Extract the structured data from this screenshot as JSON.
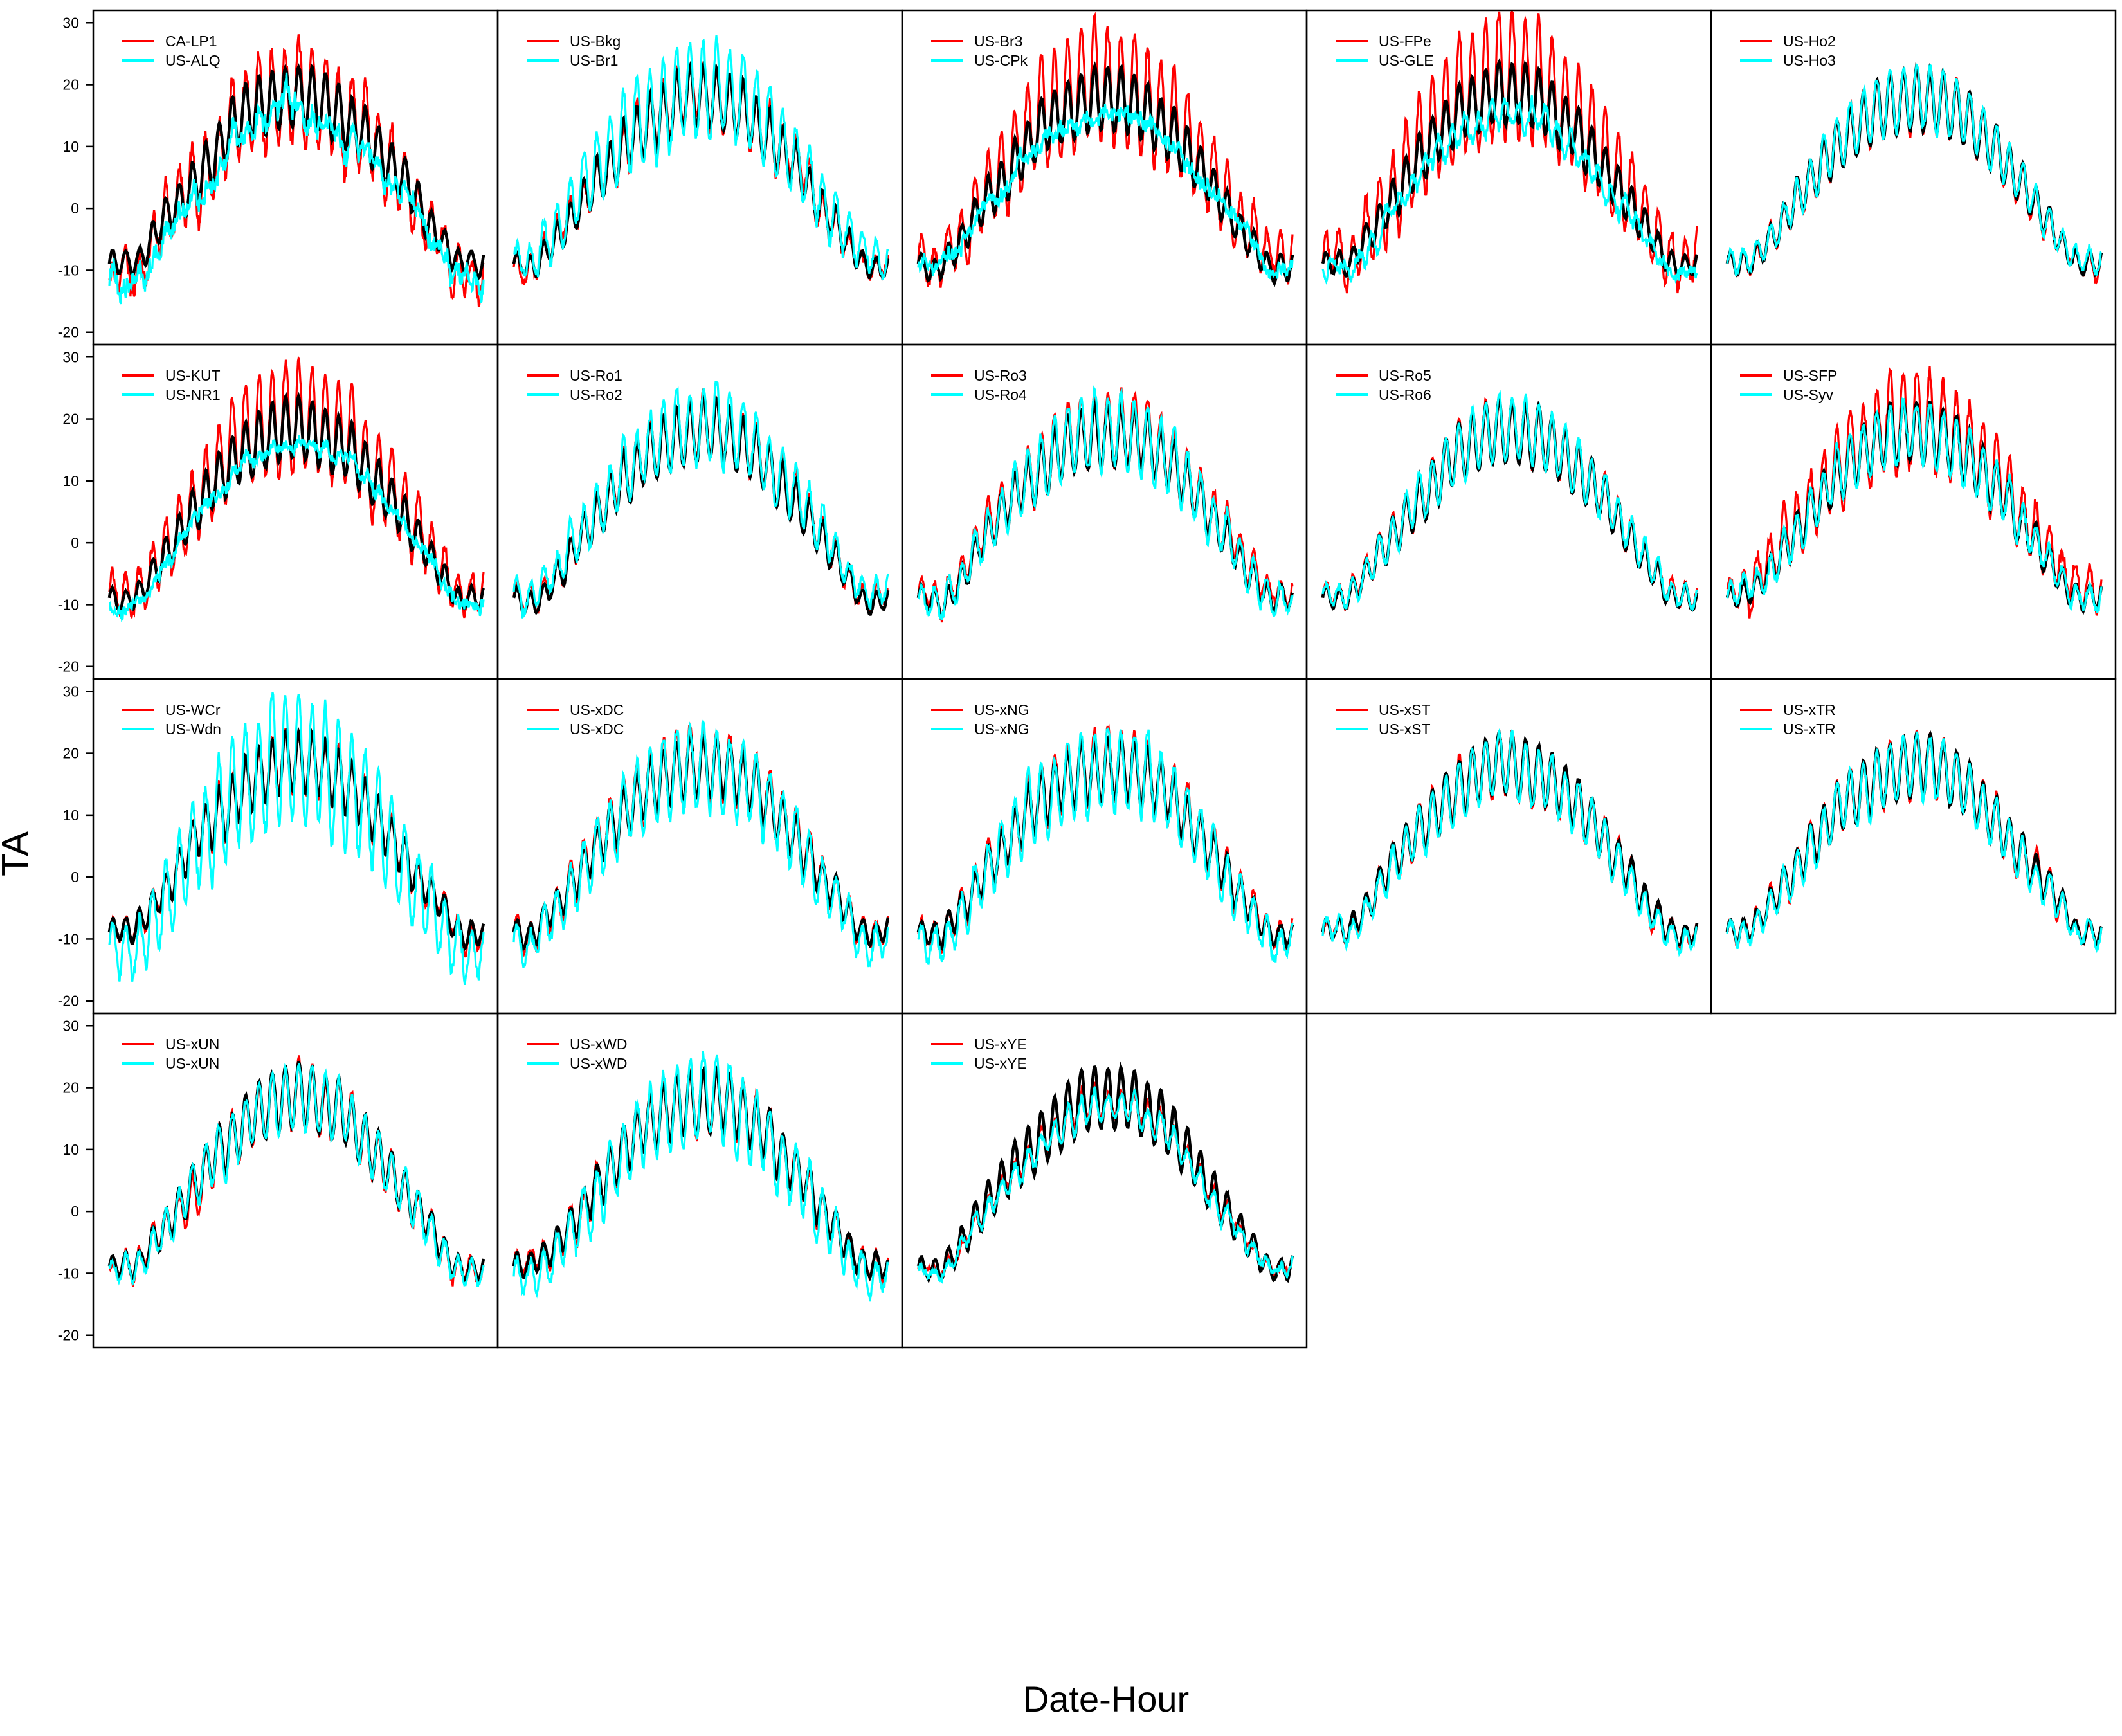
{
  "chart_data": {
    "type": "line",
    "xlabel": "Date-Hour",
    "ylabel": "TA",
    "ylim": [
      -22,
      32
    ],
    "y_ticks": [
      -20,
      -10,
      0,
      10,
      20,
      30
    ],
    "x_ticks": [],
    "grid": false,
    "legend_position": "top-left",
    "colors": {
      "reference": "#000000",
      "first": "#ff0000",
      "second": "#00ffff"
    },
    "panels": [
      {
        "legend": [
          "CA-LP1",
          "US-ALQ"
        ],
        "red": {
          "amp": 3,
          "base": -2,
          "jit": 1.8,
          "noise": 2
        },
        "cyan": {
          "amp": -4,
          "base": -3,
          "jit": 2.2,
          "noise": 2
        }
      },
      {
        "legend": [
          "US-Bkg",
          "US-Br1"
        ],
        "red": {
          "amp": 0,
          "base": 0,
          "jit": 1.2,
          "noise": 1
        },
        "cyan": {
          "amp": 3,
          "base": 1,
          "jit": 1.5,
          "noise": 1
        }
      },
      {
        "legend": [
          "US-Br3",
          "US-CPk"
        ],
        "red": {
          "amp": 5,
          "base": 1,
          "jit": 1.3,
          "noise": 1
        },
        "cyan": {
          "amp": -6,
          "base": 0,
          "jit": 1.8,
          "noise": 1
        }
      },
      {
        "legend": [
          "US-FPe",
          "US-GLE"
        ],
        "red": {
          "amp": 6,
          "base": 1,
          "jit": 1.5,
          "noise": 1
        },
        "cyan": {
          "amp": -8,
          "base": -1,
          "jit": 1.5,
          "noise": 1
        }
      },
      {
        "legend": [
          "US-Ho2",
          "US-Ho3"
        ],
        "red": {
          "amp": 0,
          "base": 0,
          "jit": 0.6,
          "noise": 0.5
        },
        "cyan": {
          "amp": 0,
          "base": 0.3,
          "jit": 0.8,
          "noise": 0.5
        }
      },
      {
        "legend": [
          "US-KUT",
          "US-NR1"
        ],
        "red": {
          "amp": 4,
          "base": 1,
          "jit": 1.4,
          "noise": 1
        },
        "cyan": {
          "amp": -5,
          "base": -1,
          "jit": 1.6,
          "noise": 1
        }
      },
      {
        "legend": [
          "US-Ro1",
          "US-Ro2"
        ],
        "red": {
          "amp": 0,
          "base": 0.5,
          "jit": 0.9,
          "noise": 0.6
        },
        "cyan": {
          "amp": 1,
          "base": 1.5,
          "jit": 1.4,
          "noise": 1
        }
      },
      {
        "legend": [
          "US-Ro3",
          "US-Ro4"
        ],
        "red": {
          "amp": 1,
          "base": 1,
          "jit": 1,
          "noise": 0.7
        },
        "cyan": {
          "amp": 1,
          "base": 0,
          "jit": 1.2,
          "noise": 0.8
        }
      },
      {
        "legend": [
          "US-Ro5",
          "US-Ro6"
        ],
        "red": {
          "amp": 0,
          "base": 0.5,
          "jit": 0.7,
          "noise": 0.5
        },
        "cyan": {
          "amp": 0,
          "base": 0.2,
          "jit": 0.8,
          "noise": 0.5
        }
      },
      {
        "legend": [
          "US-SFP",
          "US-Syv"
        ],
        "red": {
          "amp": 3,
          "base": 1,
          "jit": 1.6,
          "noise": 1.2
        },
        "cyan": {
          "amp": 0,
          "base": 0,
          "jit": 1.2,
          "noise": 0.8
        }
      },
      {
        "legend": [
          "US-WCr",
          "US-Wdn"
        ],
        "red": {
          "amp": 0,
          "base": 0,
          "jit": 0.8,
          "noise": 0.6
        },
        "cyan": {
          "amp": 6,
          "base": -3,
          "jit": 1.8,
          "noise": 1.2
        }
      },
      {
        "legend": [
          "US-xDC",
          "US-xDC"
        ],
        "red": {
          "amp": 1,
          "base": 0,
          "jit": 0.9,
          "noise": 0.6
        },
        "cyan": {
          "amp": 2,
          "base": -1.5,
          "jit": 1.4,
          "noise": 1
        }
      },
      {
        "legend": [
          "US-xNG",
          "US-xNG"
        ],
        "red": {
          "amp": 1,
          "base": 0,
          "jit": 0.9,
          "noise": 0.6
        },
        "cyan": {
          "amp": 2,
          "base": -1.5,
          "jit": 1.4,
          "noise": 1
        }
      },
      {
        "legend": [
          "US-xST",
          "US-xST"
        ],
        "red": {
          "amp": 0,
          "base": 0,
          "jit": 0.8,
          "noise": 0.6
        },
        "cyan": {
          "amp": 0,
          "base": -0.5,
          "jit": 0.9,
          "noise": 0.6
        }
      },
      {
        "legend": [
          "US-xTR",
          "US-xTR"
        ],
        "red": {
          "amp": 0,
          "base": 0,
          "jit": 0.8,
          "noise": 0.6
        },
        "cyan": {
          "amp": 0,
          "base": -0.5,
          "jit": 0.9,
          "noise": 0.6
        }
      },
      {
        "legend": [
          "US-xUN",
          "US-xUN"
        ],
        "red": {
          "amp": 0,
          "base": -0.5,
          "jit": 1,
          "noise": 0.8
        },
        "cyan": {
          "amp": 0,
          "base": -0.5,
          "jit": 0.9,
          "noise": 0.6
        }
      },
      {
        "legend": [
          "US-xWD",
          "US-xWD"
        ],
        "red": {
          "amp": 0,
          "base": 0,
          "jit": 0.9,
          "noise": 0.6
        },
        "cyan": {
          "amp": 2,
          "base": -2,
          "jit": 1.4,
          "noise": 1
        }
      },
      {
        "legend": [
          "US-xYE",
          "US-xYE"
        ],
        "red": {
          "amp": -3,
          "base": 0,
          "jit": 0.9,
          "noise": 0.6
        },
        "cyan": {
          "amp": -3,
          "base": -0.5,
          "jit": 1,
          "noise": 0.6
        }
      }
    ]
  }
}
